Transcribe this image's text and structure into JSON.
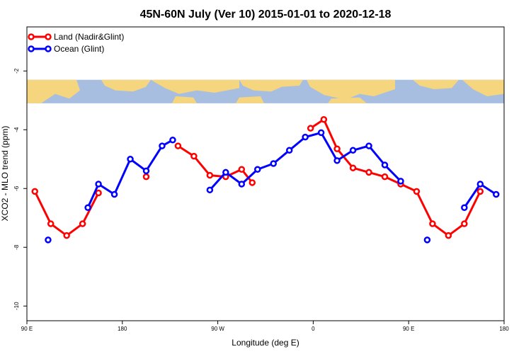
{
  "chart_data": {
    "type": "line",
    "title": "45N-60N July (Ver 10)   2015-01-01 to 2020-12-18",
    "xlabel": "Longitude (deg E)",
    "ylabel": "XCO2 - MLO trend (ppm)",
    "xlim": [
      90,
      540
    ],
    "ylim": [
      -10.5,
      -0.5
    ],
    "x_ticks": [
      {
        "value": 90,
        "label": "90 E"
      },
      {
        "value": 180,
        "label": "180"
      },
      {
        "value": 270,
        "label": "90 W"
      },
      {
        "value": 360,
        "label": "0"
      },
      {
        "value": 450,
        "label": "90 E"
      },
      {
        "value": 540,
        "label": "180"
      }
    ],
    "y_ticks": [
      {
        "value": -2,
        "label": "-2"
      },
      {
        "value": -4,
        "label": "-4"
      },
      {
        "value": -6,
        "label": "-6"
      },
      {
        "value": -8,
        "label": "-8"
      },
      {
        "value": -10,
        "label": "-10"
      }
    ],
    "grid": false,
    "legend_position": "top-left",
    "background_map_band": [
      -3.1,
      -2.3
    ],
    "series": [
      {
        "name": "Land (Nadir&Glint)",
        "color": "#ff0000",
        "segments": [
          [
            [
              97.5,
              -6.1
            ],
            [
              112.5,
              -7.2
            ],
            [
              127.5,
              -7.6
            ],
            [
              142.5,
              -7.2
            ],
            [
              157.5,
              -6.15
            ]
          ],
          [
            [
              202.5,
              -5.6
            ]
          ],
          [
            [
              232.5,
              -4.55
            ],
            [
              247.5,
              -4.9
            ],
            [
              262.5,
              -5.55
            ],
            [
              277.5,
              -5.6
            ],
            [
              292.5,
              -5.35
            ],
            [
              302.5,
              -5.8
            ]
          ],
          [
            [
              357.5,
              -3.95
            ],
            [
              370,
              -3.65
            ],
            [
              382.5,
              -4.65
            ],
            [
              397.5,
              -5.3
            ],
            [
              412.5,
              -5.45
            ],
            [
              427.5,
              -5.6
            ],
            [
              442.5,
              -5.85
            ],
            [
              457.5,
              -6.1
            ],
            [
              472.5,
              -7.2
            ],
            [
              487.5,
              -7.6
            ],
            [
              502.5,
              -7.2
            ],
            [
              517.5,
              -6.1
            ]
          ]
        ]
      },
      {
        "name": "Ocean (Glint)",
        "color": "#0000ff",
        "segments": [
          [
            [
              110,
              -7.75
            ]
          ],
          [
            [
              147.5,
              -6.65
            ],
            [
              157.5,
              -5.85
            ],
            [
              172.5,
              -6.2
            ],
            [
              187.5,
              -5.0
            ],
            [
              202.5,
              -5.4
            ],
            [
              217.5,
              -4.55
            ],
            [
              227.5,
              -4.35
            ]
          ],
          [
            [
              262.5,
              -6.05
            ],
            [
              277.5,
              -5.45
            ],
            [
              292.5,
              -5.85
            ],
            [
              307.5,
              -5.35
            ],
            [
              322.5,
              -5.15
            ],
            [
              337.5,
              -4.7
            ],
            [
              352.5,
              -4.25
            ],
            [
              367.5,
              -4.1
            ],
            [
              382.5,
              -5.05
            ],
            [
              397.5,
              -4.7
            ],
            [
              412.5,
              -4.55
            ],
            [
              427.5,
              -5.2
            ],
            [
              442.5,
              -5.75
            ]
          ],
          [
            [
              467.5,
              -7.75
            ]
          ],
          [
            [
              502.5,
              -6.65
            ],
            [
              517.5,
              -5.85
            ],
            [
              532.5,
              -6.2
            ]
          ]
        ]
      }
    ]
  }
}
